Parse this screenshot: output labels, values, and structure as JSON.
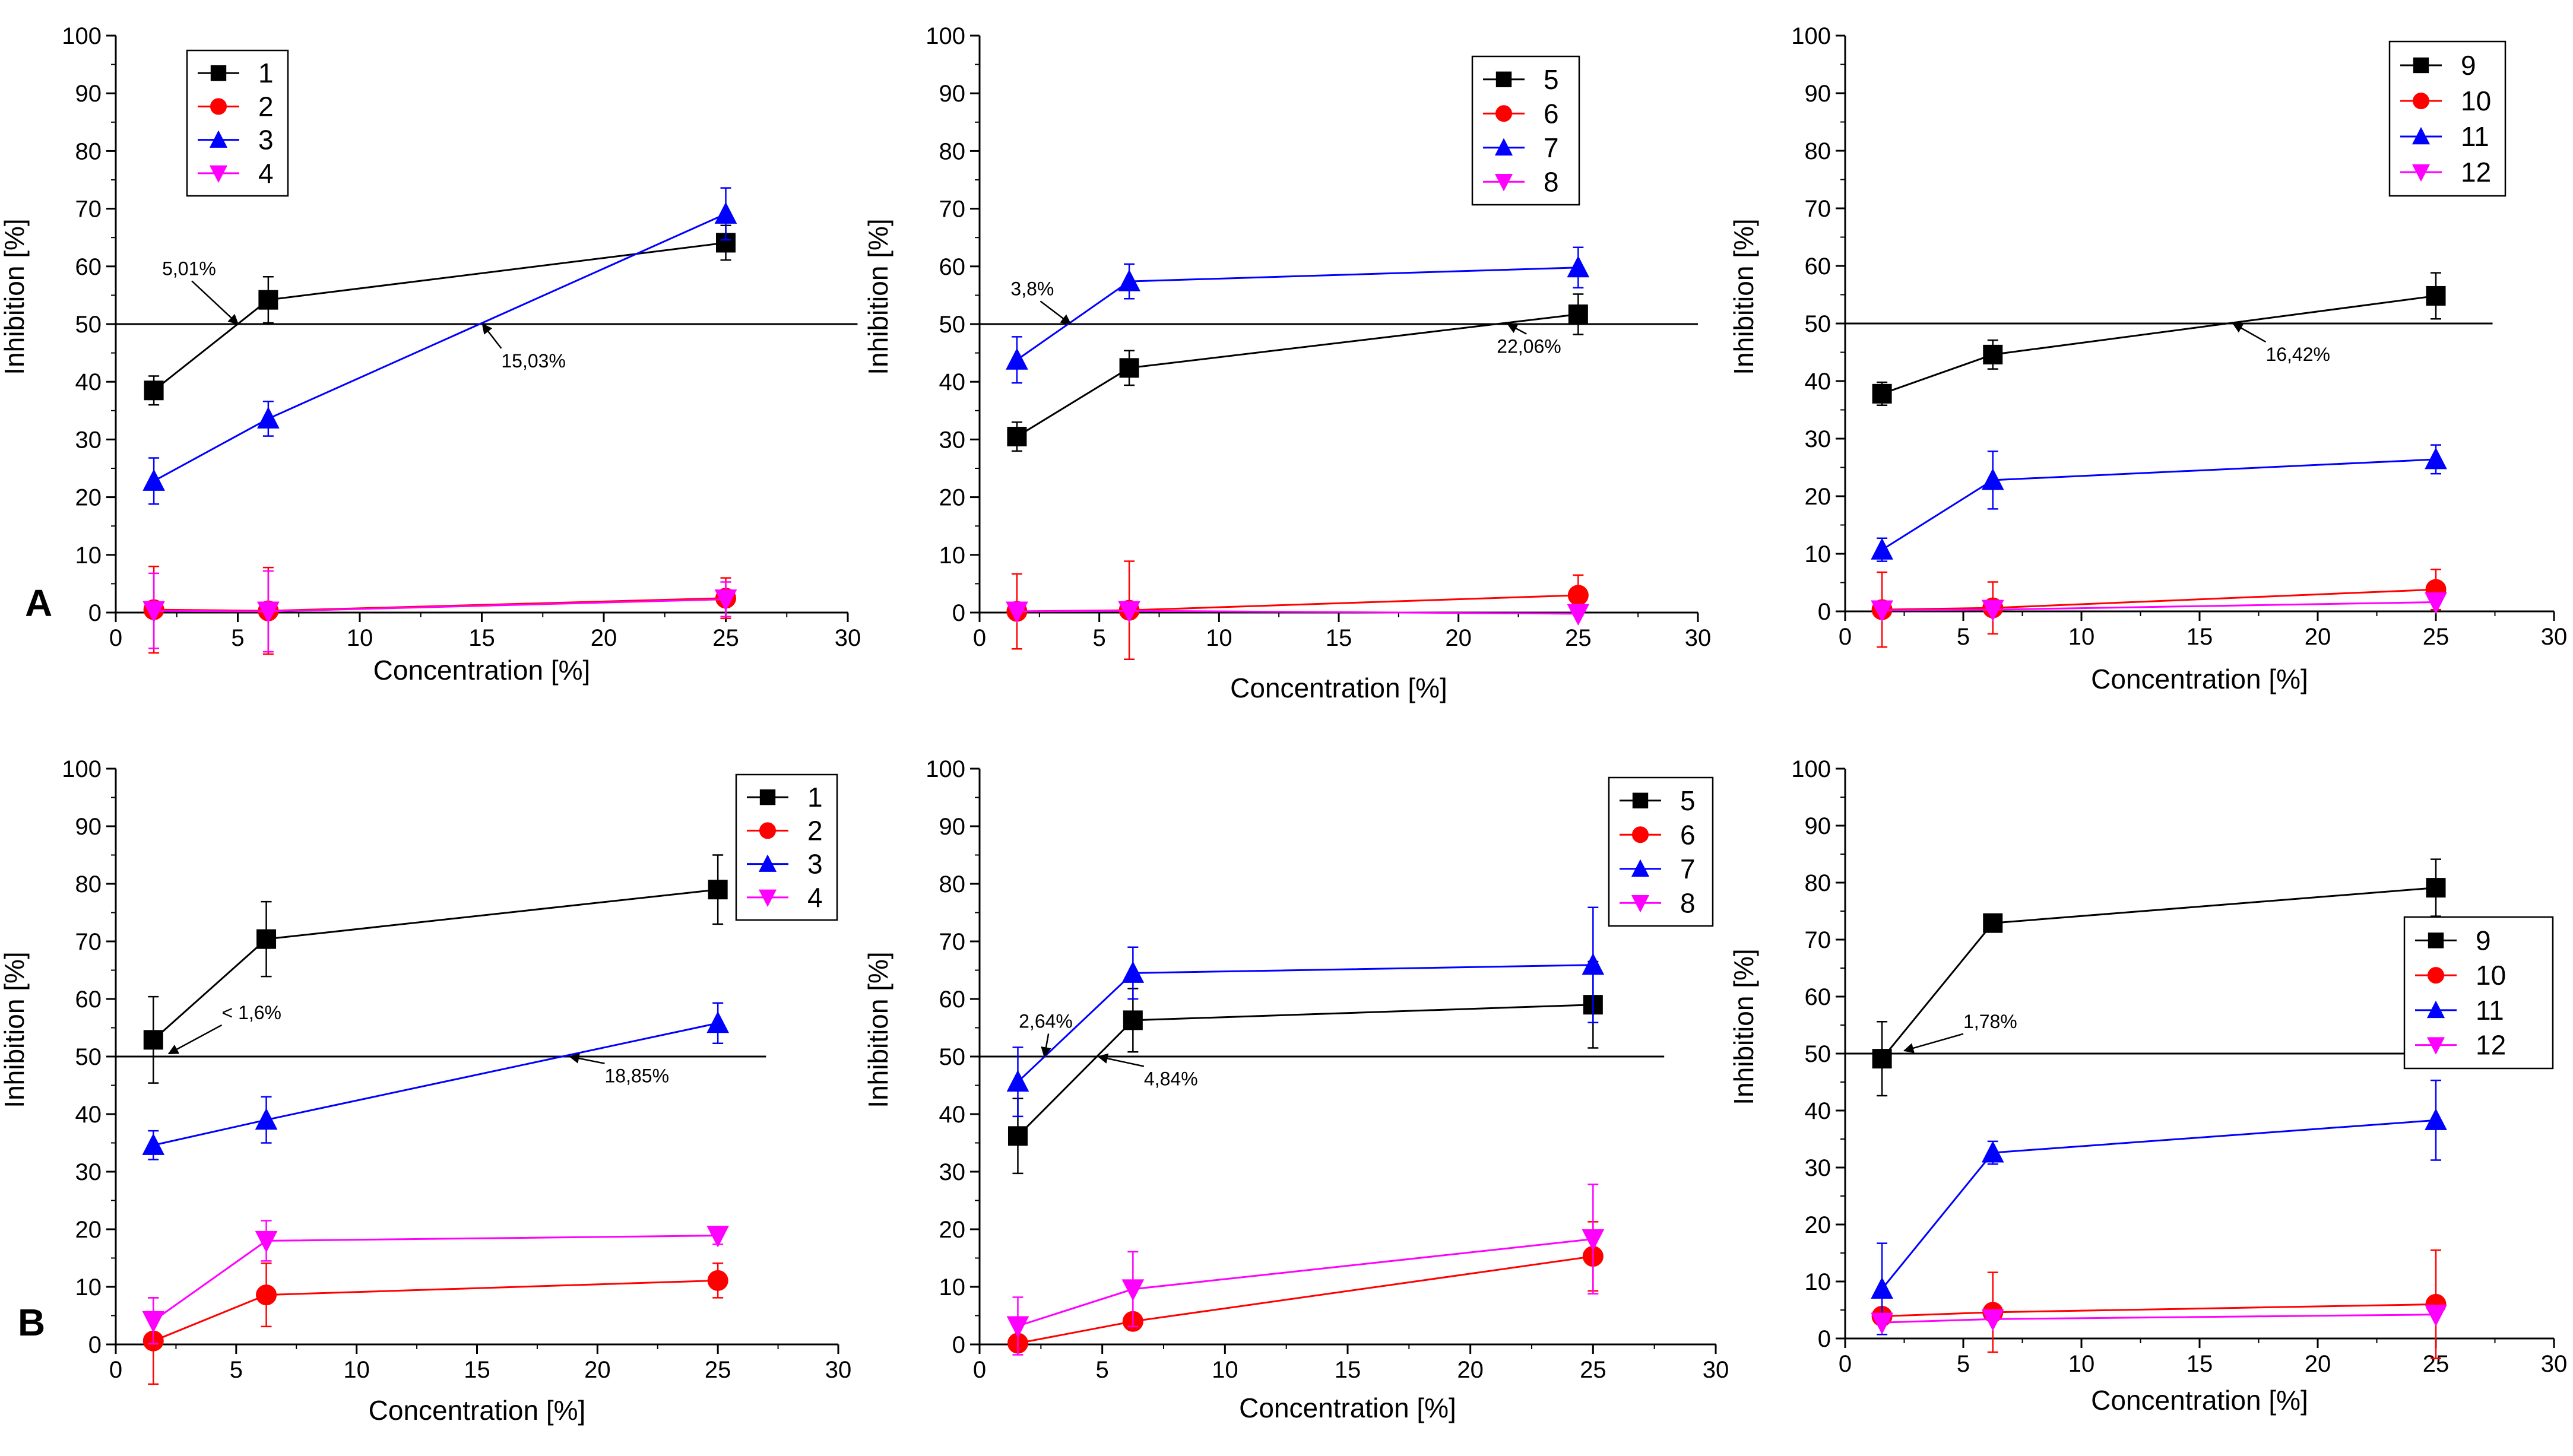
{
  "panel_labels": [
    "A",
    "B"
  ],
  "colors": {
    "black": "#000000",
    "red": "#ff0000",
    "blue": "#0000ff",
    "magenta": "#ff00ff",
    "ref": "#000000"
  },
  "chart_data": [
    {
      "type": "line",
      "row": "A",
      "title": "",
      "xlabel": "Concentration [%]",
      "ylabel": "Inhibition [%]",
      "xlim": [
        0,
        30
      ],
      "ylim": [
        0,
        100
      ],
      "xticks": [
        "0",
        "5",
        "10",
        "15",
        "20",
        "25",
        "30"
      ],
      "yticks": [
        "0",
        "10",
        "20",
        "30",
        "40",
        "50",
        "60",
        "70",
        "80",
        "90",
        "100"
      ],
      "x": [
        1.56,
        6.25,
        25
      ],
      "reference_line": 50,
      "ref_x_end": 30.4,
      "series": [
        {
          "name": "1",
          "color": "black",
          "marker": "square",
          "values": [
            38.5,
            54.2,
            64.1
          ],
          "errors": [
            2.5,
            4,
            3
          ]
        },
        {
          "name": "2",
          "color": "red",
          "marker": "circle",
          "values": [
            0.5,
            0.3,
            2.5
          ],
          "errors": [
            7.5,
            7.5,
            3.5
          ]
        },
        {
          "name": "3",
          "color": "blue",
          "marker": "triangle-up",
          "values": [
            22.8,
            33.6,
            69.1
          ],
          "errors": [
            4,
            3,
            4.5
          ]
        },
        {
          "name": "4",
          "color": "magenta",
          "marker": "triangle-down",
          "values": [
            0.3,
            0.2,
            2.3
          ],
          "errors": [
            6.5,
            7,
            3
          ]
        }
      ],
      "legend": {
        "position": "top-left"
      },
      "annotations": [
        {
          "text": "5,01%",
          "label_x": 1.9,
          "label_y": 58.5,
          "arrow_to_x": 5.01,
          "arrow_to_y": 50
        },
        {
          "text": "15,03%",
          "label_x": 15.8,
          "label_y": 42.5,
          "arrow_to_x": 15.03,
          "arrow_to_y": 50
        }
      ]
    },
    {
      "type": "line",
      "row": "A",
      "title": "",
      "xlabel": "Concentration [%]",
      "ylabel": "Inhibition [%]",
      "xlim": [
        0,
        30
      ],
      "ylim": [
        0,
        100
      ],
      "xticks": [
        "0",
        "5",
        "10",
        "15",
        "20",
        "25",
        "30"
      ],
      "yticks": [
        "0",
        "10",
        "20",
        "30",
        "40",
        "50",
        "60",
        "70",
        "80",
        "90",
        "100"
      ],
      "x": [
        1.56,
        6.25,
        25
      ],
      "reference_line": 50,
      "ref_x_end": 30,
      "series": [
        {
          "name": "5",
          "color": "black",
          "marker": "square",
          "values": [
            30.5,
            42.4,
            51.7
          ],
          "errors": [
            2.5,
            3,
            3.5
          ]
        },
        {
          "name": "6",
          "color": "red",
          "marker": "circle",
          "values": [
            0.2,
            0.4,
            3.0
          ],
          "errors": [
            6.5,
            8.5,
            3.5
          ]
        },
        {
          "name": "7",
          "color": "blue",
          "marker": "triangle-up",
          "values": [
            43.8,
            57.4,
            59.8
          ],
          "errors": [
            4,
            3,
            3.5
          ]
        },
        {
          "name": "8",
          "color": "magenta",
          "marker": "triangle-down",
          "values": [
            0.2,
            0.3,
            -0.2
          ],
          "errors": [
            0,
            0,
            0
          ]
        }
      ],
      "legend": {
        "position": "top-right"
      },
      "annotations": [
        {
          "text": "3,8%",
          "label_x": 1.3,
          "label_y": 55,
          "arrow_to_x": 3.8,
          "arrow_to_y": 50
        },
        {
          "text": "22,06%",
          "label_x": 21.6,
          "label_y": 45,
          "arrow_to_x": 22.06,
          "arrow_to_y": 50
        }
      ]
    },
    {
      "type": "line",
      "row": "A",
      "title": "",
      "xlabel": "Concentration [%]",
      "ylabel": "Inhibition [%]",
      "xlim": [
        0,
        30
      ],
      "ylim": [
        0,
        100
      ],
      "xticks": [
        "0",
        "5",
        "10",
        "15",
        "20",
        "25",
        "30"
      ],
      "yticks": [
        "0",
        "10",
        "20",
        "30",
        "40",
        "50",
        "60",
        "70",
        "80",
        "90",
        "100"
      ],
      "x": [
        1.56,
        6.25,
        25
      ],
      "reference_line": 50,
      "ref_x_end": 27.4,
      "series": [
        {
          "name": "9",
          "color": "black",
          "marker": "square",
          "values": [
            37.8,
            44.6,
            54.8
          ],
          "errors": [
            2,
            2.5,
            4
          ]
        },
        {
          "name": "10",
          "color": "red",
          "marker": "circle",
          "values": [
            0.3,
            0.6,
            3.8
          ],
          "errors": [
            6.5,
            4.5,
            3.5
          ]
        },
        {
          "name": "11",
          "color": "blue",
          "marker": "triangle-up",
          "values": [
            10.7,
            22.8,
            26.4
          ],
          "errors": [
            2,
            5,
            2.5
          ]
        },
        {
          "name": "12",
          "color": "magenta",
          "marker": "triangle-down",
          "values": [
            0.2,
            0.3,
            1.6
          ],
          "errors": [
            0,
            0,
            0
          ]
        }
      ],
      "legend": {
        "position": "top-right"
      },
      "annotations": [
        {
          "text": "16,42%",
          "label_x": 17.8,
          "label_y": 43.5,
          "arrow_to_x": 16.42,
          "arrow_to_y": 50
        }
      ]
    },
    {
      "type": "line",
      "row": "B",
      "title": "",
      "xlabel": "Concentration [%]",
      "ylabel": "Inhibition [%]",
      "xlim": [
        0,
        30
      ],
      "ylim": [
        0,
        100
      ],
      "xticks": [
        "0",
        "5",
        "10",
        "15",
        "20",
        "25",
        "30"
      ],
      "yticks": [
        "0",
        "10",
        "20",
        "30",
        "40",
        "50",
        "60",
        "70",
        "80",
        "90",
        "100"
      ],
      "x": [
        1.56,
        6.25,
        25
      ],
      "reference_line": 50,
      "ref_x_end": 27,
      "series": [
        {
          "name": "1",
          "color": "black",
          "marker": "square",
          "values": [
            52.9,
            70.4,
            79.0
          ],
          "errors": [
            7.5,
            6.5,
            6
          ]
        },
        {
          "name": "2",
          "color": "red",
          "marker": "circle",
          "values": [
            0.6,
            8.6,
            11.1
          ],
          "errors": [
            7.5,
            5.5,
            3
          ]
        },
        {
          "name": "3",
          "color": "blue",
          "marker": "triangle-up",
          "values": [
            34.6,
            39.0,
            55.8
          ],
          "errors": [
            2.5,
            4,
            3.5
          ]
        },
        {
          "name": "4",
          "color": "magenta",
          "marker": "triangle-down",
          "values": [
            4.1,
            18.0,
            18.9
          ],
          "errors": [
            4,
            3.5,
            1.5
          ]
        }
      ],
      "legend": {
        "position": "top-right"
      },
      "annotations": [
        {
          "text": "< 1,6%",
          "label_x": 4.4,
          "label_y": 56.5,
          "arrow_to_x": 2.2,
          "arrow_to_y": 50.5
        },
        {
          "text": "18,85%",
          "label_x": 20.3,
          "label_y": 45.5,
          "arrow_to_x": 18.85,
          "arrow_to_y": 50
        }
      ]
    },
    {
      "type": "line",
      "row": "B",
      "title": "",
      "xlabel": "Concentration [%]",
      "ylabel": "Inhibition [%]",
      "xlim": [
        0,
        30
      ],
      "ylim": [
        0,
        100
      ],
      "xticks": [
        "0",
        "5",
        "10",
        "15",
        "20",
        "25",
        "30"
      ],
      "yticks": [
        "0",
        "10",
        "20",
        "30",
        "40",
        "50",
        "60",
        "70",
        "80",
        "90",
        "100"
      ],
      "x": [
        1.56,
        6.25,
        25
      ],
      "reference_line": 50,
      "ref_x_end": 27.9,
      "series": [
        {
          "name": "5",
          "color": "black",
          "marker": "square",
          "values": [
            36.2,
            56.3,
            59.0
          ],
          "errors": [
            6.5,
            5.5,
            7.5
          ]
        },
        {
          "name": "6",
          "color": "red",
          "marker": "circle",
          "values": [
            0.2,
            4.0,
            15.3
          ],
          "errors": [
            0,
            0,
            6
          ]
        },
        {
          "name": "7",
          "color": "blue",
          "marker": "triangle-up",
          "values": [
            45.6,
            64.5,
            65.9
          ],
          "errors": [
            6,
            4.5,
            10
          ]
        },
        {
          "name": "8",
          "color": "magenta",
          "marker": "triangle-down",
          "values": [
            3.2,
            9.6,
            18.3
          ],
          "errors": [
            5,
            6.5,
            9.5
          ]
        }
      ],
      "legend": {
        "position": "top-right"
      },
      "annotations": [
        {
          "text": "2,64%",
          "label_x": 1.6,
          "label_y": 55,
          "arrow_to_x": 2.64,
          "arrow_to_y": 50
        },
        {
          "text": "4,84%",
          "label_x": 6.7,
          "label_y": 45,
          "arrow_to_x": 4.84,
          "arrow_to_y": 50
        }
      ]
    },
    {
      "type": "line",
      "row": "B",
      "title": "",
      "xlabel": "Concentration [%]",
      "ylabel": "Inhibition [%]",
      "xlim": [
        0,
        30
      ],
      "ylim": [
        0,
        100
      ],
      "xticks": [
        "0",
        "5",
        "10",
        "15",
        "20",
        "25",
        "30"
      ],
      "yticks": [
        "0",
        "10",
        "20",
        "30",
        "40",
        "50",
        "60",
        "70",
        "80",
        "90",
        "100"
      ],
      "x": [
        1.56,
        6.25,
        25
      ],
      "reference_line": 50,
      "ref_x_end": 26.5,
      "series": [
        {
          "name": "9",
          "color": "black",
          "marker": "square",
          "values": [
            49.1,
            72.9,
            79.1
          ],
          "errors": [
            6.5,
            1,
            5
          ]
        },
        {
          "name": "10",
          "color": "red",
          "marker": "circle",
          "values": [
            3.9,
            4.6,
            6.0
          ],
          "errors": [
            0,
            7,
            9.5
          ]
        },
        {
          "name": "11",
          "color": "blue",
          "marker": "triangle-up",
          "values": [
            8.7,
            32.6,
            38.3
          ],
          "errors": [
            8,
            2,
            7
          ]
        },
        {
          "name": "12",
          "color": "magenta",
          "marker": "triangle-down",
          "values": [
            2.8,
            3.4,
            4.2
          ],
          "errors": [
            0,
            0,
            0
          ]
        }
      ],
      "legend": {
        "position": "middle-right"
      },
      "annotations": [
        {
          "text": "1,78%",
          "label_x": 5.0,
          "label_y": 54.5,
          "arrow_to_x": 2.5,
          "arrow_to_y": 50.5
        }
      ]
    }
  ]
}
